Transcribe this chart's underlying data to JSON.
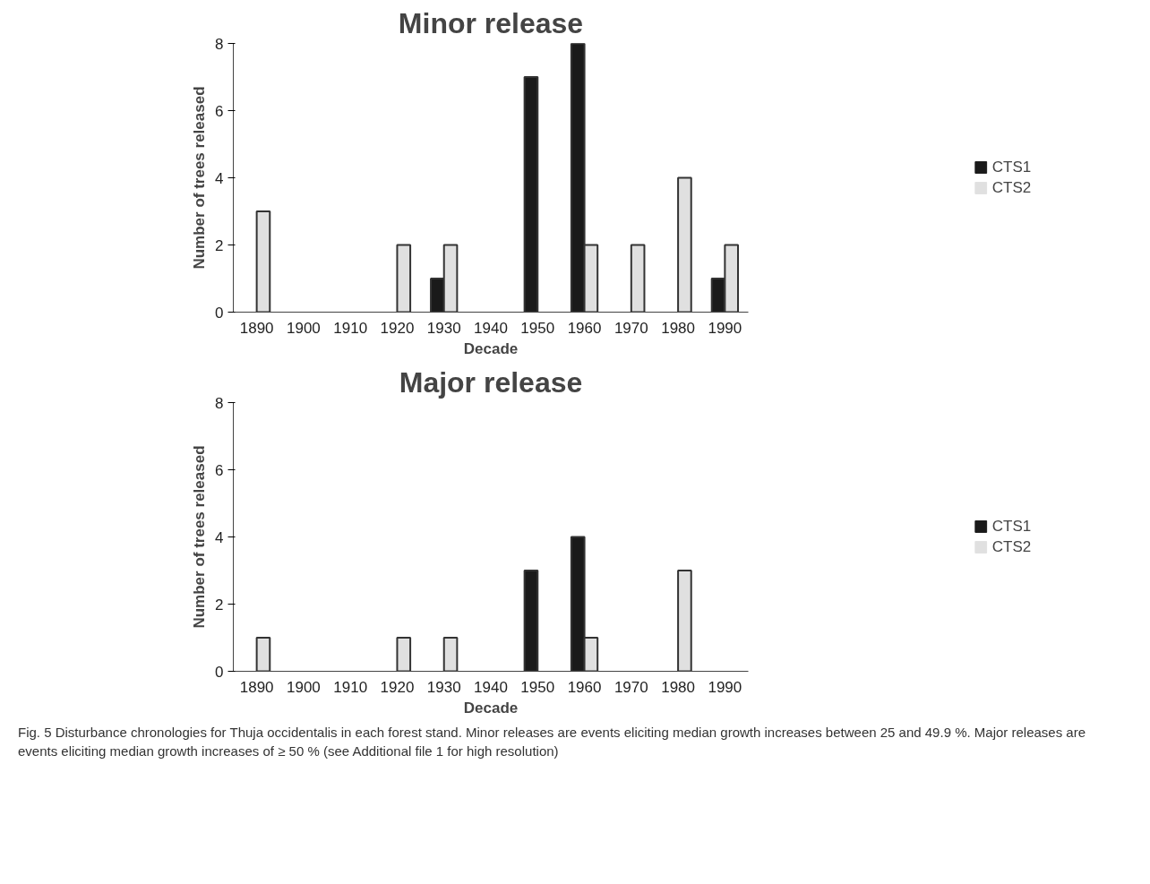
{
  "chart_data": [
    {
      "type": "bar",
      "title": "Minor release",
      "xlabel": "Decade",
      "ylabel": "Number of trees released",
      "categories": [
        "1890",
        "1900",
        "1910",
        "1920",
        "1930",
        "1940",
        "1950",
        "1960",
        "1970",
        "1980",
        "1990"
      ],
      "series": [
        {
          "name": "CTS1",
          "color": "#1a1a1a",
          "values": [
            null,
            null,
            null,
            null,
            1,
            null,
            7,
            8,
            null,
            null,
            1
          ]
        },
        {
          "name": "CTS2",
          "color": "#e0e0e0",
          "values": [
            3,
            null,
            null,
            2,
            2,
            null,
            null,
            2,
            2,
            4,
            2
          ]
        }
      ],
      "ylim": [
        0,
        8
      ],
      "yticks": [
        0,
        2,
        4,
        6,
        8
      ],
      "grid": false,
      "legend": "right"
    },
    {
      "type": "bar",
      "title": "Major release",
      "xlabel": "Decade",
      "ylabel": "Number of trees released",
      "categories": [
        "1890",
        "1900",
        "1910",
        "1920",
        "1930",
        "1940",
        "1950",
        "1960",
        "1970",
        "1980",
        "1990"
      ],
      "series": [
        {
          "name": "CTS1",
          "color": "#1a1a1a",
          "values": [
            null,
            null,
            null,
            null,
            null,
            null,
            3,
            4,
            null,
            null,
            null
          ]
        },
        {
          "name": "CTS2",
          "color": "#e0e0e0",
          "values": [
            1,
            null,
            null,
            1,
            1,
            null,
            null,
            1,
            null,
            3,
            null
          ]
        }
      ],
      "ylim": [
        0,
        8
      ],
      "yticks": [
        0,
        2,
        4,
        6,
        8
      ],
      "grid": false,
      "legend": "right",
      "annotations": [
        "Fig. 5 Disturbance chronologies for Thuja occidentalis in each forest stand. Minor releases are events eliciting median growth increases between 25 and 49.9 %. Major releases are events eliciting median growth increases of ≥ 50 % (see Additional file 1 for high resolution)"
      ]
    }
  ]
}
